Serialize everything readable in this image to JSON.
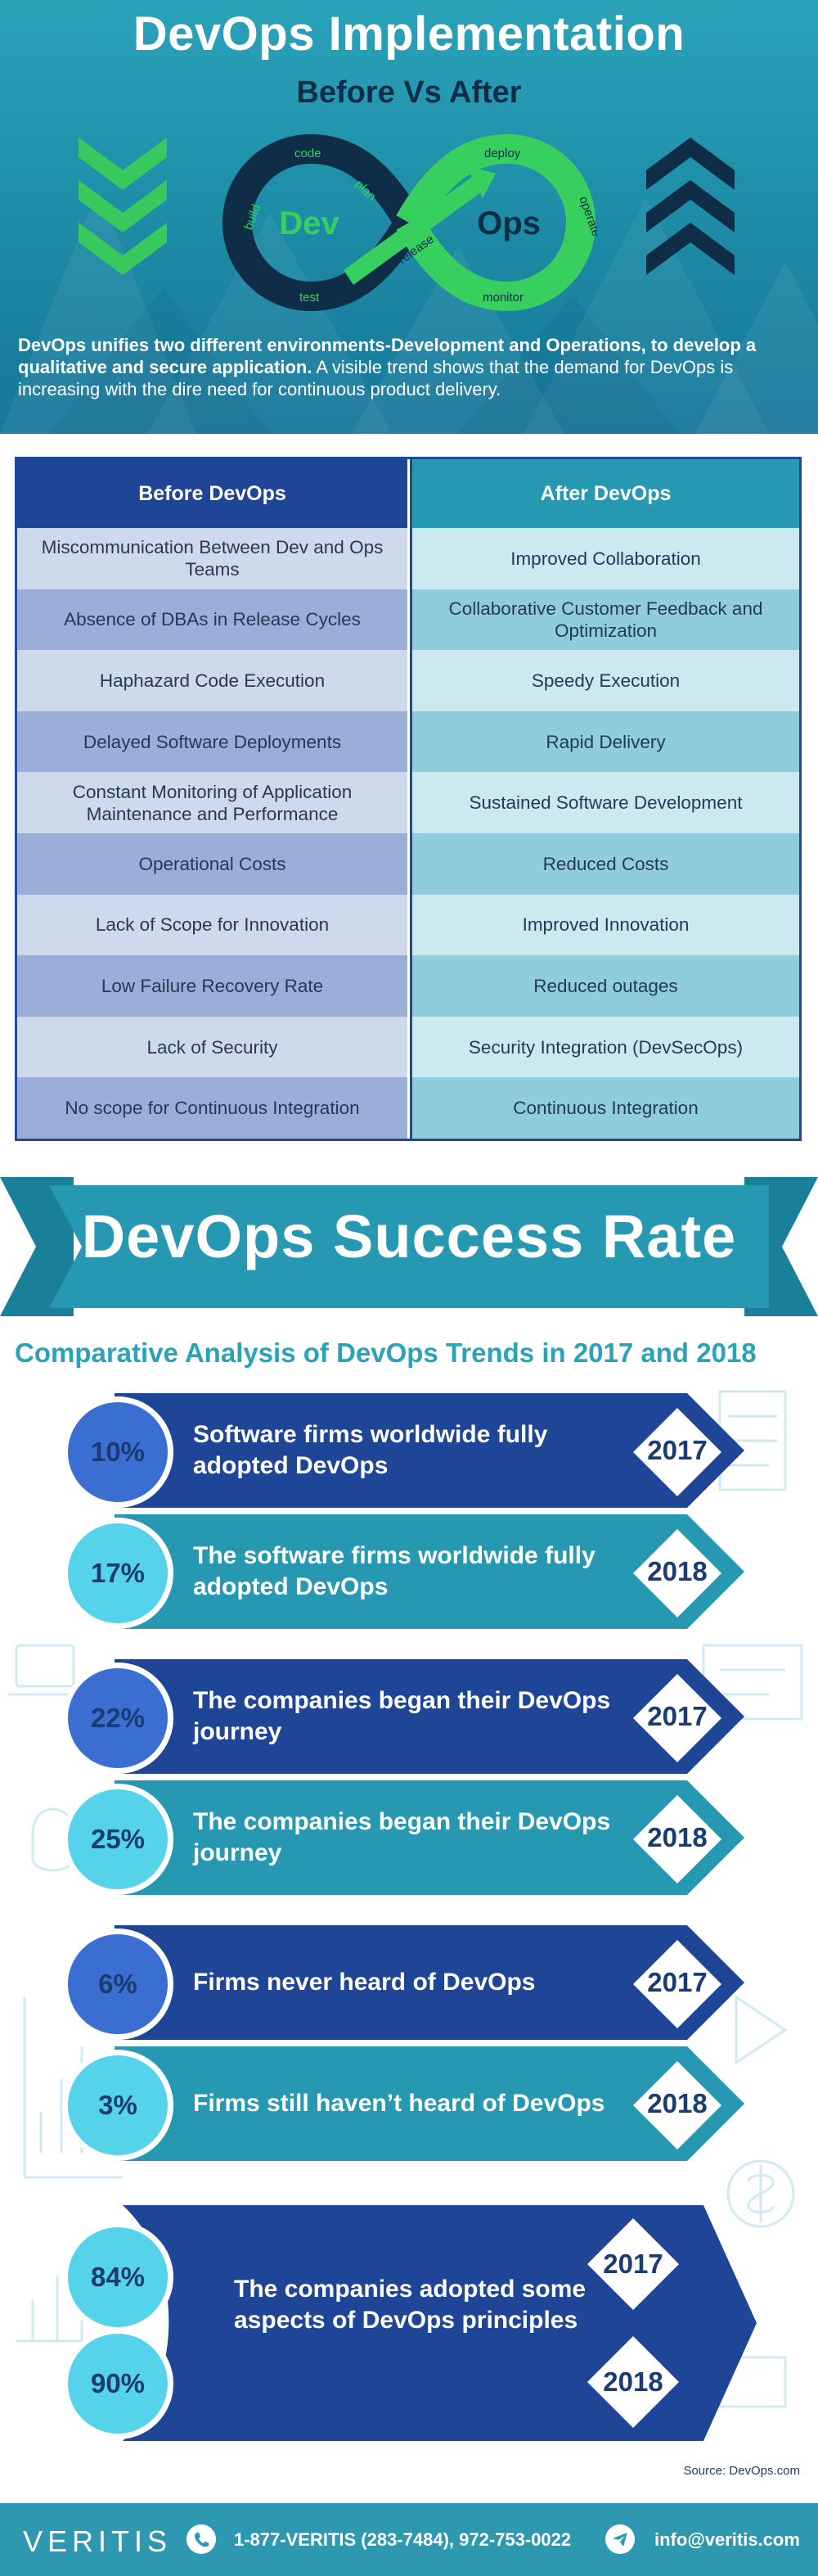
{
  "hero": {
    "title": "DevOps Implementation",
    "subtitle": "Before Vs After",
    "logo": {
      "dev": "Dev",
      "ops": "Ops",
      "loop_labels": [
        "code",
        "build",
        "test",
        "plan",
        "release",
        "deploy",
        "operate",
        "monitor"
      ]
    },
    "description_bold": "DevOps unifies two different environments-Development and Operations, to develop a qualitative and secure application.",
    "description_rest": " A visible trend shows that the demand for DevOps is increasing with the dire need for continuous product delivery.",
    "icons": [
      "chevrons-down-icon",
      "devops-infinity-icon",
      "chevrons-up-icon"
    ]
  },
  "comparison": {
    "before_header": "Before DevOps",
    "after_header": "After DevOps",
    "rows": [
      {
        "before": "Miscommunication Between Dev and Ops Teams",
        "after": "Improved Collaboration"
      },
      {
        "before": "Absence of DBAs in Release Cycles",
        "after": "Collaborative Customer Feedback and Optimization"
      },
      {
        "before": "Haphazard Code Execution",
        "after": "Speedy Execution"
      },
      {
        "before": "Delayed Software Deployments",
        "after": "Rapid Delivery"
      },
      {
        "before": "Constant Monitoring of Application Maintenance and Performance",
        "after": "Sustained Software Development"
      },
      {
        "before": "Operational Costs",
        "after": "Reduced Costs"
      },
      {
        "before": "Lack of Scope for Innovation",
        "after": "Improved Innovation"
      },
      {
        "before": "Low Failure Recovery Rate",
        "after": "Reduced outages"
      },
      {
        "before": "Lack of Security",
        "after": "Security Integration (DevSecOps)"
      },
      {
        "before": "No scope for Continuous Integration",
        "after": "Continuous Integration"
      }
    ]
  },
  "success": {
    "banner_title": "DevOps Success Rate",
    "comparative_title": "Comparative Analysis of DevOps Trends in 2017 and 2018",
    "stats": [
      {
        "percent": "10%",
        "label": "Software firms worldwide fully adopted DevOps",
        "year": "2017"
      },
      {
        "percent": "17%",
        "label": "The software firms worldwide fully adopted DevOps",
        "year": "2018"
      },
      {
        "percent": "22%",
        "label": "The companies began their DevOps journey",
        "year": "2017"
      },
      {
        "percent": "25%",
        "label": "The companies began their DevOps journey",
        "year": "2018"
      },
      {
        "percent": "6%",
        "label": "Firms never heard of DevOps",
        "year": "2017"
      },
      {
        "percent": "3%",
        "label": "Firms still haven’t heard of DevOps",
        "year": "2018"
      }
    ],
    "combined": {
      "percent_2017": "84%",
      "percent_2018": "90%",
      "label": "The companies adopted some aspects of DevOps principles",
      "year_2017": "2017",
      "year_2018": "2018"
    },
    "source": "Source: DevOps.com"
  },
  "footer": {
    "logo": "VERITIS",
    "phone": "1-877-VERITIS (283-7484), 972-753-0022",
    "email": "info@veritis.com",
    "icons": [
      "phone-icon",
      "send-icon"
    ]
  },
  "colors": {
    "navy": "#1e4596",
    "teal": "#2698b2",
    "light_teal": "#55d3ea",
    "royal": "#3b6ed1",
    "green": "#37d05f"
  }
}
